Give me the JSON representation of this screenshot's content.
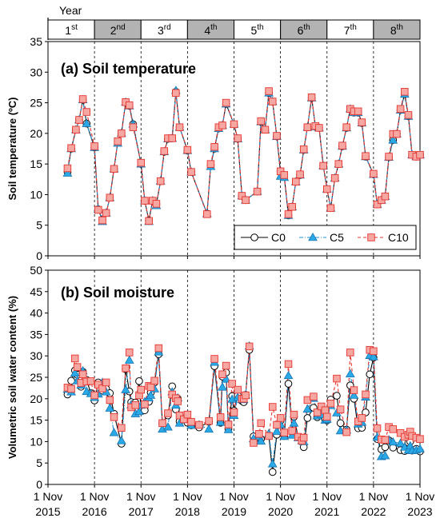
{
  "header": {
    "label": "Year",
    "years": [
      {
        "num": "1",
        "sup": "st"
      },
      {
        "num": "2",
        "sup": "nd"
      },
      {
        "num": "3",
        "sup": "rd"
      },
      {
        "num": "4",
        "sup": "th"
      },
      {
        "num": "5",
        "sup": "th"
      },
      {
        "num": "6",
        "sup": "th"
      },
      {
        "num": "7",
        "sup": "th"
      },
      {
        "num": "8",
        "sup": "th"
      }
    ],
    "shaded_color": "#b3b3b3"
  },
  "x_axis": {
    "tick_labels": [
      [
        "1 Nov",
        "2015"
      ],
      [
        "1 Nov",
        "2016"
      ],
      [
        "1 Nov",
        "2017"
      ],
      [
        "1 Nov",
        "2018"
      ],
      [
        "1 Nov",
        "2019"
      ],
      [
        "1 Nov",
        "2020"
      ],
      [
        "1 Nov",
        "2021"
      ],
      [
        "1 Nov",
        "2022"
      ],
      [
        "1 Nov",
        "2023"
      ]
    ]
  },
  "legend": {
    "placement": "inside lower-right of panel (a)",
    "entries": [
      {
        "label": "C0",
        "color": "#000000",
        "marker": "circle-open",
        "line": "solid"
      },
      {
        "label": "C5",
        "color": "#1e90d6",
        "marker": "triangle-cyan",
        "line": "dash-dot"
      },
      {
        "label": "C10",
        "color": "#e8342f",
        "marker": "square-pink",
        "line": "dashed"
      }
    ]
  },
  "chart_data": [
    {
      "type": "line",
      "title": "(a) Soil temperature",
      "ylabel": "Soil temperature (ºC)",
      "ylim": [
        0,
        35
      ],
      "yticks": [
        "0",
        "5",
        "10",
        "15",
        "20",
        "25",
        "30",
        "35"
      ],
      "x_units": "years since 1 Nov 2015",
      "x_tick_labels": [
        "1 Nov 2015",
        "1 Nov 2016",
        "1 Nov 2017",
        "1 Nov 2018",
        "1 Nov 2019",
        "1 Nov 2020",
        "1 Nov 2021",
        "1 Nov 2022",
        "1 Nov 2023"
      ],
      "grid": "vertical dashed lines at year boundaries",
      "x": [
        0.42,
        0.5,
        0.6,
        0.67,
        0.75,
        0.83,
        1.0,
        1.08,
        1.17,
        1.25,
        1.33,
        1.42,
        1.5,
        1.58,
        1.67,
        1.75,
        1.83,
        2.0,
        2.08,
        2.17,
        2.25,
        2.33,
        2.42,
        2.5,
        2.58,
        2.67,
        2.75,
        2.83,
        3.0,
        3.08,
        3.42,
        3.5,
        3.58,
        3.67,
        3.75,
        3.83,
        4.0,
        4.08,
        4.17,
        4.25,
        4.5,
        4.58,
        4.67,
        4.75,
        4.83,
        4.92,
        5.0,
        5.08,
        5.17,
        5.25,
        5.33,
        5.42,
        5.5,
        5.58,
        5.67,
        5.75,
        5.83,
        5.92,
        6.0,
        6.08,
        6.17,
        6.25,
        6.33,
        6.42,
        6.5,
        6.58,
        6.67,
        6.75,
        6.83,
        7.0,
        7.08,
        7.17,
        7.25,
        7.33,
        7.42,
        7.5,
        7.58,
        7.67,
        7.75,
        7.83,
        7.92,
        8.0
      ],
      "series": [
        {
          "name": "C0",
          "values": [
            13.7,
            17.5,
            20.6,
            22.2,
            25.5,
            21.6,
            17.7,
            7.6,
            5.9,
            7.0,
            9.5,
            14.2,
            18.6,
            20.0,
            25.1,
            24.5,
            21.5,
            15.0,
            9.0,
            5.8,
            9.0,
            8.4,
            12.2,
            17.0,
            19.1,
            19.2,
            26.8,
            21.0,
            17.2,
            13.7,
            6.9,
            14.8,
            17.5,
            20.8,
            21.3,
            24.8,
            21.5,
            19.1,
            9.8,
            9.1,
            10.5,
            21.9,
            20.6,
            26.6,
            25.2,
            19.5,
            13.8,
            13.0,
            6.6,
            8.0,
            12.1,
            13.2,
            17.3,
            21.0,
            25.8,
            21.1,
            20.9,
            14.7,
            10.9,
            7.8,
            12.7,
            15.0,
            17.9,
            20.9,
            24.0,
            23.4,
            23.4,
            21.7,
            16.2,
            13.3,
            8.4,
            9.1,
            9.7,
            16.1,
            18.9,
            19.9,
            23.8,
            26.4,
            22.8,
            16.5,
            16.2,
            16.5
          ]
        },
        {
          "name": "C5",
          "values": [
            13.5,
            17.5,
            20.6,
            22.2,
            25.5,
            21.6,
            17.7,
            7.6,
            5.6,
            7.0,
            9.5,
            14.2,
            18.4,
            20.0,
            25.1,
            24.5,
            21.5,
            15.0,
            9.0,
            5.6,
            9.0,
            8.2,
            12.2,
            17.0,
            19.1,
            19.2,
            27.0,
            21.0,
            17.2,
            13.7,
            6.9,
            14.6,
            17.5,
            20.8,
            21.3,
            24.8,
            21.5,
            19.1,
            9.8,
            9.1,
            10.5,
            21.9,
            20.6,
            26.6,
            25.2,
            19.5,
            13.0,
            12.8,
            6.6,
            8.0,
            12.1,
            13.2,
            17.3,
            21.0,
            25.8,
            21.1,
            20.9,
            14.7,
            10.9,
            7.8,
            12.7,
            15.0,
            17.9,
            20.9,
            24.0,
            23.4,
            23.4,
            21.7,
            16.2,
            13.3,
            8.4,
            9.1,
            9.7,
            16.1,
            18.9,
            19.9,
            23.8,
            26.4,
            22.8,
            16.5,
            16.2,
            16.5
          ]
        },
        {
          "name": "C10",
          "values": [
            14.3,
            17.6,
            20.6,
            22.2,
            25.6,
            23.5,
            17.9,
            7.5,
            5.8,
            7.0,
            9.5,
            14.2,
            18.7,
            20.0,
            25.1,
            24.6,
            21.0,
            15.2,
            9.0,
            5.7,
            9.0,
            8.5,
            12.2,
            17.1,
            19.2,
            19.2,
            26.6,
            21.0,
            17.3,
            13.7,
            6.8,
            15.0,
            17.8,
            21.0,
            21.3,
            25.0,
            21.5,
            19.2,
            9.8,
            9.1,
            10.5,
            22.0,
            20.6,
            26.9,
            25.2,
            19.6,
            13.8,
            13.2,
            6.8,
            8.0,
            12.1,
            13.3,
            17.4,
            21.0,
            25.9,
            21.2,
            20.9,
            14.7,
            10.9,
            7.8,
            12.7,
            15.0,
            18.0,
            21.0,
            24.0,
            23.6,
            23.6,
            21.8,
            16.3,
            13.4,
            8.4,
            9.1,
            9.7,
            16.2,
            19.9,
            19.9,
            24.0,
            26.8,
            23.0,
            16.5,
            16.2,
            16.5
          ]
        }
      ]
    },
    {
      "type": "line",
      "title": "(b) Soil moisture",
      "ylabel": "Volumetric soil water content (%)",
      "ylim": [
        0,
        50
      ],
      "yticks": [
        "0",
        "5",
        "10",
        "15",
        "20",
        "25",
        "30",
        "35",
        "40",
        "45",
        "50"
      ],
      "x_units": "years since 1 Nov 2015",
      "x_tick_labels": [
        "1 Nov 2015",
        "1 Nov 2016",
        "1 Nov 2017",
        "1 Nov 2018",
        "1 Nov 2019",
        "1 Nov 2020",
        "1 Nov 2021",
        "1 Nov 2022",
        "1 Nov 2023"
      ],
      "grid": "vertical dashed lines at year boundaries",
      "x": [
        0.42,
        0.5,
        0.58,
        0.63,
        0.71,
        0.75,
        0.83,
        0.92,
        1.0,
        1.08,
        1.17,
        1.25,
        1.33,
        1.42,
        1.58,
        1.67,
        1.75,
        1.79,
        1.88,
        1.96,
        2.0,
        2.08,
        2.17,
        2.21,
        2.29,
        2.38,
        2.46,
        2.58,
        2.67,
        2.75,
        2.79,
        2.83,
        2.92,
        3.0,
        3.08,
        3.25,
        3.46,
        3.58,
        3.71,
        3.75,
        3.83,
        3.88,
        3.96,
        4.0,
        4.08,
        4.17,
        4.21,
        4.25,
        4.33,
        4.42,
        4.54,
        4.58,
        4.75,
        4.83,
        4.92,
        5.0,
        5.08,
        5.17,
        5.25,
        5.29,
        5.38,
        5.46,
        5.5,
        5.58,
        5.71,
        5.79,
        5.88,
        5.96,
        6.0,
        6.08,
        6.21,
        6.29,
        6.42,
        6.5,
        6.58,
        6.67,
        6.75,
        6.83,
        6.92,
        7.0,
        7.08,
        7.17,
        7.25,
        7.33,
        7.42,
        7.58,
        7.67,
        7.75,
        7.79,
        7.83,
        7.92,
        8.0
      ],
      "series": [
        {
          "name": "C0",
          "values": [
            21.0,
            24.2,
            26.6,
            25.6,
            22.8,
            26.3,
            24.4,
            21.3,
            19.6,
            23.8,
            21.9,
            22.3,
            21.3,
            16.5,
            9.5,
            26.9,
            21.7,
            19.2,
            19.1,
            24.1,
            17.1,
            17.3,
            19.3,
            21.4,
            23.8,
            30.4,
            14.3,
            16.1,
            22.9,
            17.5,
            20.0,
            14.7,
            15.3,
            14.4,
            13.8,
            13.3,
            14.6,
            27.6,
            14.4,
            25.2,
            26.1,
            13.0,
            20.6,
            17.2,
            20.8,
            19.5,
            19.2,
            20.9,
            31.4,
            11.2,
            11.1,
            10.6,
            11.3,
            2.9,
            11.6,
            14.9,
            11.3,
            23.5,
            12.5,
            15.8,
            11.0,
            10.3,
            8.7,
            15.5,
            17.9,
            15.7,
            17.2,
            15.2,
            14.9,
            19.8,
            20.7,
            14.3,
            12.8,
            23.1,
            20.0,
            13.1,
            13.2,
            16.8,
            25.7,
            29.6,
            10.6,
            8.2,
            8.7,
            10.3,
            8.6,
            8.0,
            7.8,
            9.8,
            10.0,
            7.9,
            8.3,
            7.7
          ]
        },
        {
          "name": "C5",
          "values": [
            22.2,
            21.6,
            26.0,
            24.2,
            23.2,
            26.5,
            21.7,
            21.2,
            20.3,
            21.1,
            23.8,
            21.6,
            17.8,
            12.1,
            10.2,
            22.1,
            29.0,
            18.6,
            16.5,
            17.0,
            18.5,
            19.3,
            20.2,
            20.8,
            22.3,
            30.9,
            12.9,
            13.4,
            21.6,
            18.5,
            20.2,
            14.3,
            15.3,
            15.1,
            13.8,
            13.9,
            12.9,
            28.5,
            14.5,
            22.7,
            24.6,
            12.8,
            19.9,
            16.1,
            20.3,
            19.8,
            19.8,
            20.8,
            32.3,
            10.7,
            11.1,
            10.1,
            11.9,
            4.8,
            12.4,
            14.0,
            11.2,
            25.4,
            11.5,
            14.3,
            10.9,
            10.2,
            10.0,
            17.6,
            20.1,
            16.0,
            16.3,
            15.0,
            15.2,
            18.4,
            16.7,
            12.5,
            12.7,
            25.8,
            20.8,
            14.1,
            14.5,
            20.4,
            30.1,
            29.8,
            11.0,
            6.5,
            6.7,
            10.4,
            9.9,
            9.6,
            8.7,
            8.0,
            9.0,
            7.9,
            8.0,
            8.3
          ]
        },
        {
          "name": "C10",
          "values": [
            22.6,
            22.3,
            29.4,
            27.4,
            23.7,
            25.7,
            24.0,
            24.1,
            20.8,
            23.3,
            22.4,
            23.8,
            19.7,
            15.7,
            13.2,
            27.1,
            30.8,
            18.0,
            18.5,
            20.8,
            22.1,
            18.7,
            23.0,
            22.7,
            24.2,
            31.8,
            14.3,
            16.6,
            21.0,
            20.1,
            19.4,
            16.1,
            15.2,
            16.3,
            14.6,
            13.9,
            14.8,
            29.3,
            15.7,
            25.7,
            27.7,
            14.0,
            23.5,
            16.8,
            22.1,
            20.0,
            20.0,
            20.8,
            32.2,
            9.7,
            11.8,
            14.3,
            11.3,
            18.1,
            13.9,
            15.5,
            12.1,
            28.1,
            12.5,
            16.3,
            11.1,
            10.2,
            10.9,
            19.7,
            20.5,
            16.8,
            18.2,
            17.3,
            15.8,
            18.9,
            24.7,
            17.5,
            12.2,
            30.8,
            22.0,
            14.7,
            15.5,
            21.0,
            31.4,
            31.1,
            13.1,
            10.5,
            10.4,
            13.4,
            12.9,
            12.0,
            11.1,
            11.6,
            12.3,
            11.3,
            10.9,
            10.6
          ]
        }
      ]
    }
  ]
}
